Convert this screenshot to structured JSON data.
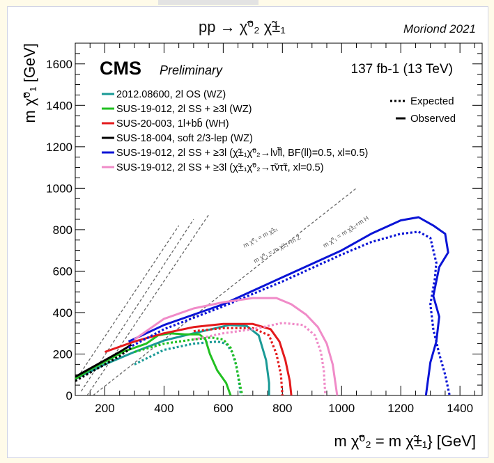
{
  "chart_data": {
    "type": "line",
    "process_label": "pp → χ̃⁰₂ χ̃±₁",
    "conference": "Moriond 2021",
    "experiment": "CMS",
    "status": "Preliminary",
    "luminosity": "137 fb-1 (13 TeV)",
    "xlabel": "m χ̃⁰₂ = m χ̃±₁} [GeV]",
    "ylabel": "m χ̃⁰₁ [GeV]",
    "xlim": [
      100,
      1475
    ],
    "ylim": [
      0,
      1700
    ],
    "xticks": [
      "200",
      "400",
      "600",
      "800",
      "1000",
      "1200",
      "1400"
    ],
    "yticks": [
      "0",
      "200",
      "400",
      "600",
      "800",
      "1000",
      "1200",
      "1400",
      "1600"
    ],
    "style_legend": [
      {
        "label": "Expected",
        "style": "dotted"
      },
      {
        "label": "Observed",
        "style": "solid"
      }
    ],
    "diagonal_labels": [
      "m χ̃⁰₁ = m χ̃±₁",
      "m χ̃⁰₁ = m χ̃±₁+m Z",
      "m χ̃⁰₁ = m χ̃±₁+m H"
    ],
    "diagonals": [
      {
        "from": [
          100,
          70
        ],
        "to": [
          450,
          820
        ]
      },
      {
        "from": [
          120,
          20
        ],
        "to": [
          500,
          850
        ]
      },
      {
        "from": [
          140,
          0
        ],
        "to": [
          550,
          870
        ]
      },
      {
        "from": [
          160,
          0
        ],
        "to": [
          1050,
          1000
        ]
      }
    ],
    "series": [
      {
        "name": "2012.08600, 2l OS (WZ)",
        "color": "#1a9a96",
        "observed": [
          [
            100,
            80
          ],
          [
            200,
            150
          ],
          [
            300,
            210
          ],
          [
            400,
            265
          ],
          [
            500,
            300
          ],
          [
            560,
            320
          ],
          [
            620,
            340
          ],
          [
            680,
            335
          ],
          [
            720,
            290
          ],
          [
            745,
            170
          ],
          [
            755,
            60
          ],
          [
            755,
            0
          ]
        ],
        "expected": [
          [
            300,
            150
          ],
          [
            400,
            220
          ],
          [
            500,
            250
          ],
          [
            580,
            260
          ],
          [
            610,
            250
          ],
          [
            630,
            210
          ],
          [
            645,
            140
          ],
          [
            655,
            50
          ],
          [
            660,
            0
          ]
        ]
      },
      {
        "name": "SUS-19-012, 2l SS + ≥3l (WZ)",
        "color": "#21c021",
        "observed": [
          [
            100,
            80
          ],
          [
            150,
            125
          ],
          [
            210,
            170
          ],
          [
            260,
            210
          ],
          [
            300,
            230
          ],
          [
            340,
            250
          ],
          [
            380,
            290
          ],
          [
            420,
            300
          ],
          [
            470,
            295
          ],
          [
            520,
            295
          ],
          [
            540,
            270
          ],
          [
            555,
            200
          ],
          [
            580,
            120
          ],
          [
            610,
            60
          ],
          [
            625,
            0
          ]
        ],
        "expected": [
          [
            300,
            210
          ],
          [
            400,
            250
          ],
          [
            500,
            270
          ],
          [
            560,
            280
          ],
          [
            600,
            270
          ],
          [
            625,
            230
          ],
          [
            640,
            170
          ],
          [
            650,
            100
          ],
          [
            660,
            30
          ],
          [
            665,
            0
          ]
        ]
      },
      {
        "name": "SUS-20-003, 1l+bb̄ (WH)",
        "color": "#e31a1c",
        "observed": [
          [
            200,
            210
          ],
          [
            300,
            260
          ],
          [
            400,
            300
          ],
          [
            500,
            330
          ],
          [
            600,
            345
          ],
          [
            700,
            345
          ],
          [
            760,
            320
          ],
          [
            790,
            260
          ],
          [
            810,
            170
          ],
          [
            825,
            70
          ],
          [
            830,
            0
          ]
        ],
        "expected": [
          [
            500,
            310
          ],
          [
            600,
            325
          ],
          [
            700,
            325
          ],
          [
            755,
            290
          ],
          [
            780,
            200
          ],
          [
            795,
            100
          ],
          [
            800,
            0
          ]
        ]
      },
      {
        "name": "SUS-18-004, soft 2/3-lep (WZ)",
        "color": "#000000",
        "observed": [
          [
            100,
            90
          ],
          [
            150,
            130
          ],
          [
            200,
            170
          ],
          [
            250,
            210
          ],
          [
            290,
            245
          ]
        ],
        "expected": [
          [
            100,
            70
          ],
          [
            150,
            110
          ],
          [
            200,
            150
          ],
          [
            250,
            190
          ],
          [
            290,
            230
          ]
        ]
      },
      {
        "name": "SUS-19-012, 2l SS + ≥3l (χ̃±₁χ̃⁰₂→lν̃l̃l, BF(ll)=0.5, xl=0.5)",
        "color": "#0a14d6",
        "observed": [
          [
            280,
            260
          ],
          [
            400,
            340
          ],
          [
            600,
            440
          ],
          [
            800,
            570
          ],
          [
            1000,
            700
          ],
          [
            1100,
            780
          ],
          [
            1200,
            845
          ],
          [
            1260,
            860
          ],
          [
            1310,
            820
          ],
          [
            1350,
            780
          ],
          [
            1360,
            690
          ],
          [
            1330,
            620
          ],
          [
            1310,
            480
          ],
          [
            1330,
            380
          ],
          [
            1320,
            260
          ],
          [
            1300,
            160
          ],
          [
            1285,
            0
          ]
        ],
        "expected": [
          [
            280,
            230
          ],
          [
            400,
            320
          ],
          [
            600,
            430
          ],
          [
            800,
            550
          ],
          [
            1000,
            680
          ],
          [
            1100,
            740
          ],
          [
            1200,
            780
          ],
          [
            1260,
            790
          ],
          [
            1300,
            760
          ],
          [
            1320,
            640
          ],
          [
            1315,
            560
          ],
          [
            1300,
            440
          ],
          [
            1310,
            320
          ],
          [
            1330,
            200
          ],
          [
            1350,
            100
          ],
          [
            1365,
            0
          ]
        ]
      },
      {
        "name": "SUS-19-012, 2l SS + ≥3l (χ̃±₁χ̃⁰₂→τ̃ντ̃τ, xl=0.5)",
        "color": "#f08bc8",
        "observed": [
          [
            300,
            270
          ],
          [
            400,
            370
          ],
          [
            500,
            420
          ],
          [
            600,
            450
          ],
          [
            700,
            470
          ],
          [
            780,
            470
          ],
          [
            830,
            440
          ],
          [
            880,
            390
          ],
          [
            920,
            330
          ],
          [
            950,
            250
          ],
          [
            970,
            150
          ],
          [
            980,
            50
          ],
          [
            985,
            0
          ]
        ],
        "expected": [
          [
            500,
            270
          ],
          [
            600,
            300
          ],
          [
            700,
            320
          ],
          [
            800,
            350
          ],
          [
            870,
            340
          ],
          [
            910,
            290
          ],
          [
            930,
            210
          ],
          [
            940,
            120
          ],
          [
            945,
            0
          ]
        ]
      }
    ]
  }
}
